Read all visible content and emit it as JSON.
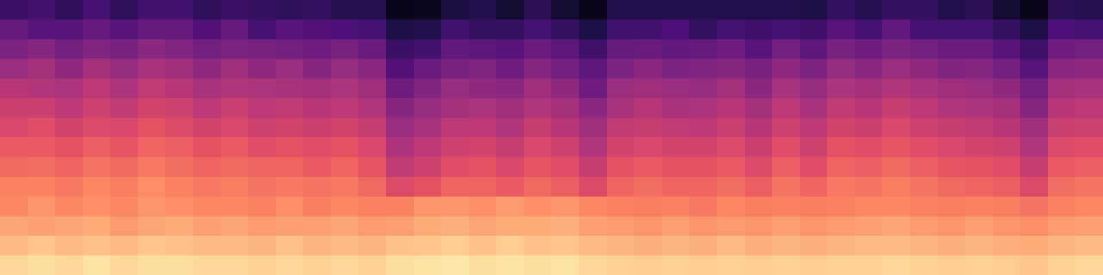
{
  "chart_data": {
    "type": "heatmap",
    "tick_labels": false,
    "color": "magma",
    "color_range": [
      -85,
      0
    ],
    "cells": [
      [
        -68,
        -66,
        -70,
        -65,
        -70,
        -66,
        -66,
        -70,
        -68,
        -69,
        -70,
        -69,
        -72,
        -72,
        -81,
        -80,
        -75,
        -73,
        -77,
        -71,
        -77,
        -81,
        -73,
        -73,
        -73,
        -73,
        -73,
        -73,
        -73,
        -74,
        -69,
        -72,
        -69,
        -69,
        -73,
        -71,
        -77,
        -81,
        -71,
        -72
      ],
      [
        -59,
        -62,
        -62,
        -59,
        -62,
        -59,
        -59,
        -63,
        -59,
        -65,
        -62,
        -63,
        -64,
        -65,
        -74,
        -73,
        -66,
        -69,
        -69,
        -65,
        -69,
        -74,
        -66,
        -66,
        -64,
        -69,
        -65,
        -67,
        -65,
        -67,
        -62,
        -65,
        -60,
        -65,
        -65,
        -65,
        -69,
        -74,
        -64,
        -65
      ],
      [
        -54,
        -52,
        -56,
        -53,
        -55,
        -51,
        -53,
        -56,
        -54,
        -55,
        -56,
        -57,
        -55,
        -58,
        -68,
        -66,
        -60,
        -61,
        -62,
        -58,
        -61,
        -67,
        -59,
        -58,
        -60,
        -59,
        -57,
        -62,
        -56,
        -61,
        -55,
        -57,
        -54,
        -56,
        -58,
        -58,
        -62,
        -67,
        -57,
        -56
      ],
      [
        -48,
        -46,
        -50,
        -46,
        -49,
        -45,
        -47,
        -50,
        -47,
        -50,
        -48,
        -52,
        -49,
        -51,
        -63,
        -58,
        -55,
        -53,
        -57,
        -52,
        -56,
        -61,
        -54,
        -51,
        -54,
        -53,
        -52,
        -55,
        -50,
        -54,
        -49,
        -51,
        -48,
        -50,
        -53,
        -52,
        -56,
        -62,
        -51,
        -50
      ],
      [
        -42,
        -43,
        -44,
        -41,
        -44,
        -40,
        -42,
        -45,
        -43,
        -44,
        -45,
        -46,
        -44,
        -47,
        -57,
        -53,
        -49,
        -50,
        -51,
        -47,
        -50,
        -57,
        -48,
        -47,
        -48,
        -49,
        -46,
        -51,
        -45,
        -49,
        -44,
        -46,
        -43,
        -45,
        -47,
        -48,
        -50,
        -56,
        -46,
        -45
      ],
      [
        -38,
        -38,
        -41,
        -37,
        -40,
        -36,
        -37,
        -41,
        -38,
        -41,
        -40,
        -42,
        -41,
        -43,
        -52,
        -49,
        -46,
        -44,
        -47,
        -43,
        -46,
        -51,
        -45,
        -42,
        -45,
        -44,
        -42,
        -46,
        -41,
        -45,
        -40,
        -42,
        -39,
        -41,
        -43,
        -44,
        -46,
        -52,
        -42,
        -41
      ],
      [
        -35,
        -33,
        -36,
        -34,
        -35,
        -32,
        -34,
        -36,
        -35,
        -37,
        -36,
        -38,
        -36,
        -39,
        -48,
        -45,
        -41,
        -41,
        -43,
        -39,
        -42,
        -47,
        -40,
        -39,
        -40,
        -41,
        -38,
        -42,
        -37,
        -41,
        -36,
        -38,
        -35,
        -37,
        -39,
        -40,
        -42,
        -47,
        -38,
        -37
      ],
      [
        -30,
        -30,
        -32,
        -29,
        -31,
        -28,
        -29,
        -32,
        -30,
        -33,
        -32,
        -33,
        -32,
        -35,
        -44,
        -41,
        -37,
        -36,
        -39,
        -35,
        -37,
        -43,
        -36,
        -35,
        -36,
        -36,
        -34,
        -38,
        -33,
        -37,
        -32,
        -33,
        -31,
        -33,
        -35,
        -36,
        -37,
        -43,
        -34,
        -33
      ],
      [
        -27,
        -26,
        -28,
        -25,
        -27,
        -24,
        -26,
        -28,
        -27,
        -28,
        -28,
        -30,
        -28,
        -31,
        -40,
        -37,
        -33,
        -32,
        -35,
        -31,
        -33,
        -39,
        -32,
        -30,
        -32,
        -32,
        -30,
        -34,
        -29,
        -33,
        -28,
        -29,
        -27,
        -29,
        -31,
        -32,
        -33,
        -39,
        -30,
        -29
      ],
      [
        -22,
        -22,
        -24,
        -21,
        -23,
        -20,
        -22,
        -24,
        -23,
        -25,
        -24,
        -25,
        -24,
        -27,
        -34,
        -32,
        -28,
        -28,
        -30,
        -27,
        -29,
        -34,
        -28,
        -26,
        -28,
        -28,
        -26,
        -29,
        -25,
        -28,
        -24,
        -25,
        -23,
        -25,
        -27,
        -28,
        -29,
        -34,
        -26,
        -25
      ],
      [
        -21,
        -19,
        -21,
        -20,
        -21,
        -19,
        -20,
        -21,
        -21,
        -22,
        -20,
        -23,
        -21,
        -22,
        -22,
        -19,
        -19,
        -20,
        -18,
        -20,
        -19,
        -21,
        -22,
        -23,
        -22,
        -24,
        -21,
        -23,
        -22,
        -23,
        -22,
        -21,
        -21,
        -22,
        -23,
        -22,
        -23,
        -25,
        -22,
        -21
      ],
      [
        -16,
        -17,
        -16,
        -15,
        -18,
        -16,
        -15,
        -17,
        -16,
        -18,
        -17,
        -17,
        -16,
        -18,
        -17,
        -15,
        -14,
        -16,
        -15,
        -15,
        -14,
        -17,
        -18,
        -19,
        -17,
        -19,
        -18,
        -19,
        -17,
        -19,
        -18,
        -17,
        -16,
        -18,
        -19,
        -17,
        -19,
        -20,
        -18,
        -17
      ],
      [
        -12,
        -10,
        -12,
        -11,
        -12,
        -10,
        -11,
        -12,
        -12,
        -13,
        -11,
        -13,
        -12,
        -13,
        -11,
        -10,
        -9,
        -11,
        -9,
        -11,
        -10,
        -12,
        -13,
        -14,
        -13,
        -14,
        -12,
        -14,
        -13,
        -14,
        -13,
        -12,
        -12,
        -13,
        -14,
        -13,
        -14,
        -15,
        -13,
        -12
      ],
      [
        -7,
        -6,
        -7,
        -5,
        -7,
        -6,
        -6,
        -7,
        -7,
        -8,
        -7,
        -8,
        -7,
        -8,
        -6,
        -5,
        -4,
        -6,
        -5,
        -6,
        -5,
        -7,
        -8,
        -9,
        -8,
        -9,
        -8,
        -9,
        -8,
        -9,
        -8,
        -8,
        -7,
        -8,
        -9,
        -8,
        -9,
        -10,
        -8,
        -7
      ]
    ]
  }
}
